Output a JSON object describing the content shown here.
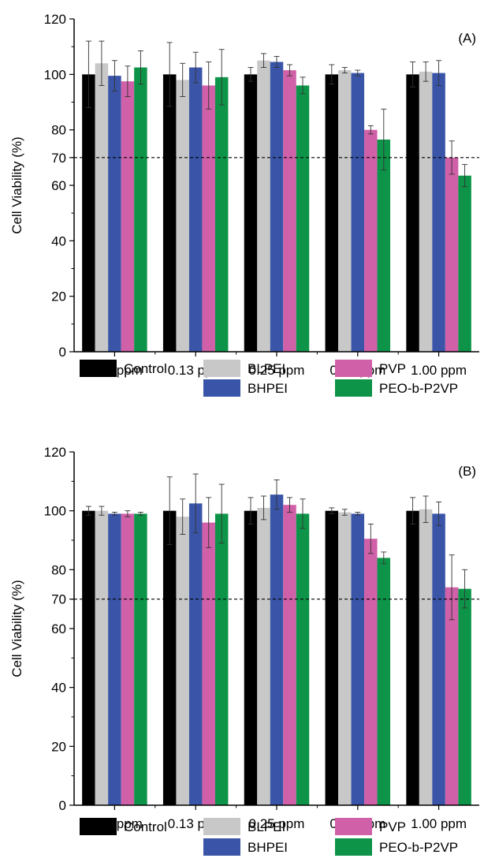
{
  "chart_data": [
    {
      "type": "bar",
      "panel_label": "(A)",
      "categories": [
        "0.06 ppm",
        "0.13 ppm",
        "0.25 ppm",
        "0.50 ppm",
        "1.00 ppm"
      ],
      "ylabel": "Cell Viability (%)",
      "ylim": [
        0,
        120
      ],
      "yticks": [
        "0",
        "20",
        "40",
        "60",
        "70",
        "80",
        "100",
        "120"
      ],
      "reference_line": 70,
      "series": [
        {
          "name": "Control",
          "color": "#000000",
          "values": [
            100,
            100,
            100,
            100,
            100
          ],
          "errors": [
            12,
            11.5,
            2.5,
            3.5,
            4.5
          ]
        },
        {
          "name": "BLPEI",
          "color": "#c8c8c8",
          "values": [
            104,
            98,
            105,
            101.5,
            101
          ],
          "errors": [
            8,
            6,
            2.5,
            1,
            3.5
          ]
        },
        {
          "name": "BHPEI",
          "color": "#3a55a8",
          "values": [
            99.5,
            102.5,
            104.5,
            100.5,
            100.5
          ],
          "errors": [
            5.5,
            5.5,
            2,
            1,
            4.5
          ]
        },
        {
          "name": "PVP",
          "color": "#d060a8",
          "values": [
            97.5,
            96,
            101.5,
            80,
            70
          ],
          "errors": [
            5.5,
            8.5,
            2,
            1.5,
            6
          ]
        },
        {
          "name": "PEO-b-P2VP",
          "color": "#0d9448",
          "values": [
            102.5,
            99,
            96,
            76.5,
            63.5
          ],
          "errors": [
            6,
            10,
            3,
            11,
            4
          ]
        }
      ],
      "legend": [
        "Control",
        "BLPEI",
        "BHPEI",
        "PVP",
        "PEO-b-P2VP"
      ]
    },
    {
      "type": "bar",
      "panel_label": "(B)",
      "categories": [
        "0.06 ppm",
        "0.13 ppm",
        "0.25 ppm",
        "0.50 ppm",
        "1.00 ppm"
      ],
      "ylabel": "Cell Viability (%)",
      "ylim": [
        0,
        120
      ],
      "yticks": [
        "0",
        "20",
        "40",
        "60",
        "70",
        "80",
        "100",
        "120"
      ],
      "reference_line": 70,
      "series": [
        {
          "name": "Control",
          "color": "#000000",
          "values": [
            100,
            100,
            100,
            100,
            100
          ],
          "errors": [
            1.5,
            11.5,
            4.5,
            1,
            4.5
          ]
        },
        {
          "name": "BLPEI",
          "color": "#c8c8c8",
          "values": [
            100,
            98,
            101,
            99.5,
            100.5
          ],
          "errors": [
            1.5,
            6,
            4,
            1,
            4.5
          ]
        },
        {
          "name": "BHPEI",
          "color": "#3a55a8",
          "values": [
            99,
            102.5,
            105.5,
            99,
            99
          ],
          "errors": [
            0.5,
            10,
            5,
            0.5,
            4
          ]
        },
        {
          "name": "PVP",
          "color": "#d060a8",
          "values": [
            99,
            96,
            102,
            90.5,
            74
          ],
          "errors": [
            1,
            8.5,
            2.5,
            5,
            11
          ]
        },
        {
          "name": "PEO-b-P2VP",
          "color": "#0d9448",
          "values": [
            99,
            99,
            99,
            84,
            73.5
          ],
          "errors": [
            0.5,
            10,
            5,
            2,
            6.5
          ]
        }
      ],
      "legend": [
        "Control",
        "BLPEI",
        "BHPEI",
        "PVP",
        "PEO-b-P2VP"
      ]
    }
  ]
}
